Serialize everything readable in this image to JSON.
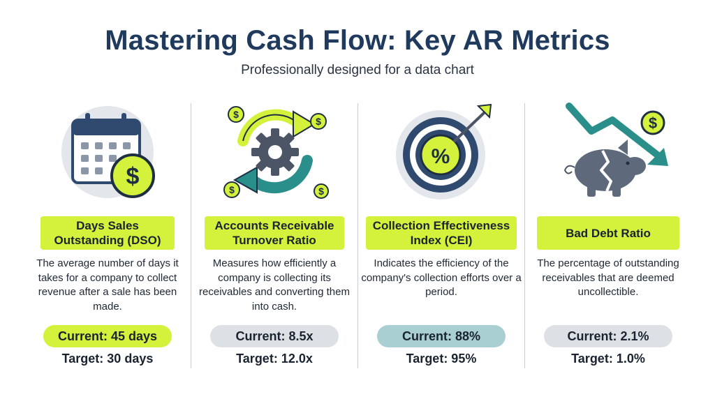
{
  "header": {
    "title": "Mastering Cash Flow: Key AR Metrics",
    "subtitle": "Professionally designed for a data chart"
  },
  "colors": {
    "navy": "#2f4a6e",
    "lime": "#d4f23c",
    "teal": "#2a8f8a",
    "gray_pill": "#dde1e6",
    "teal_pill": "#a9cfd3"
  },
  "metrics": [
    {
      "icon": "calendar-dollar-icon",
      "title": "Days Sales Outstanding (DSO)",
      "description": "The average number of days it takes for a company to collect revenue after a sale has been made.",
      "current": "Current: 45 days",
      "target": "Target: 30 days",
      "current_color": "#d4f23c"
    },
    {
      "icon": "turnover-cycle-icon",
      "title": "Accounts Receivable Turnover Ratio",
      "description": "Measures how efficiently a company is collecting its receivables and converting them into cash.",
      "current": "Current: 8.5x",
      "target": "Target: 12.0x",
      "current_color": "#dde1e6"
    },
    {
      "icon": "target-percent-icon",
      "title": "Collection Effectiveness Index (CEI)",
      "description": "Indicates the efficiency of the company's collection efforts over a period.",
      "current": "Current: 88%",
      "target": "Target: 95%",
      "current_color": "#a9cfd3"
    },
    {
      "icon": "broken-piggy-bank-icon",
      "title": "Bad Debt Ratio",
      "description": "The percentage of outstanding receivables that are deemed uncollectible.",
      "current": "Current: 2.1%",
      "target": "Target: 1.0%",
      "current_color": "#dde1e6"
    }
  ]
}
